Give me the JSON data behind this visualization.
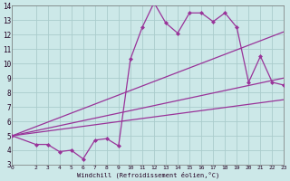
{
  "xlabel": "Windchill (Refroidissement éolien,°C)",
  "bg_color": "#cce8e8",
  "grid_color": "#aacccc",
  "line_color": "#993399",
  "xlim": [
    0,
    23
  ],
  "ylim": [
    3,
    14
  ],
  "yticks": [
    3,
    4,
    5,
    6,
    7,
    8,
    9,
    10,
    11,
    12,
    13,
    14
  ],
  "xticks": [
    0,
    2,
    3,
    4,
    5,
    6,
    7,
    8,
    9,
    10,
    11,
    12,
    13,
    14,
    15,
    16,
    17,
    18,
    19,
    20,
    21,
    22,
    23
  ],
  "line1_x": [
    0,
    23
  ],
  "line1_y": [
    5.0,
    12.2
  ],
  "line2_x": [
    0,
    23
  ],
  "line2_y": [
    5.0,
    9.0
  ],
  "line3_x": [
    0,
    23
  ],
  "line3_y": [
    5.0,
    7.5
  ],
  "series_x": [
    0,
    2,
    3,
    4,
    5,
    6,
    7,
    8,
    9,
    10,
    11,
    12,
    13,
    14,
    15,
    16,
    17,
    18,
    19,
    20,
    21,
    22,
    23
  ],
  "series_y": [
    5.0,
    4.4,
    4.4,
    3.9,
    4.0,
    3.4,
    4.7,
    4.8,
    4.3,
    10.3,
    12.5,
    14.2,
    12.8,
    12.1,
    13.5,
    13.5,
    12.9,
    13.5,
    12.5,
    8.7,
    10.5,
    8.7,
    8.5
  ]
}
